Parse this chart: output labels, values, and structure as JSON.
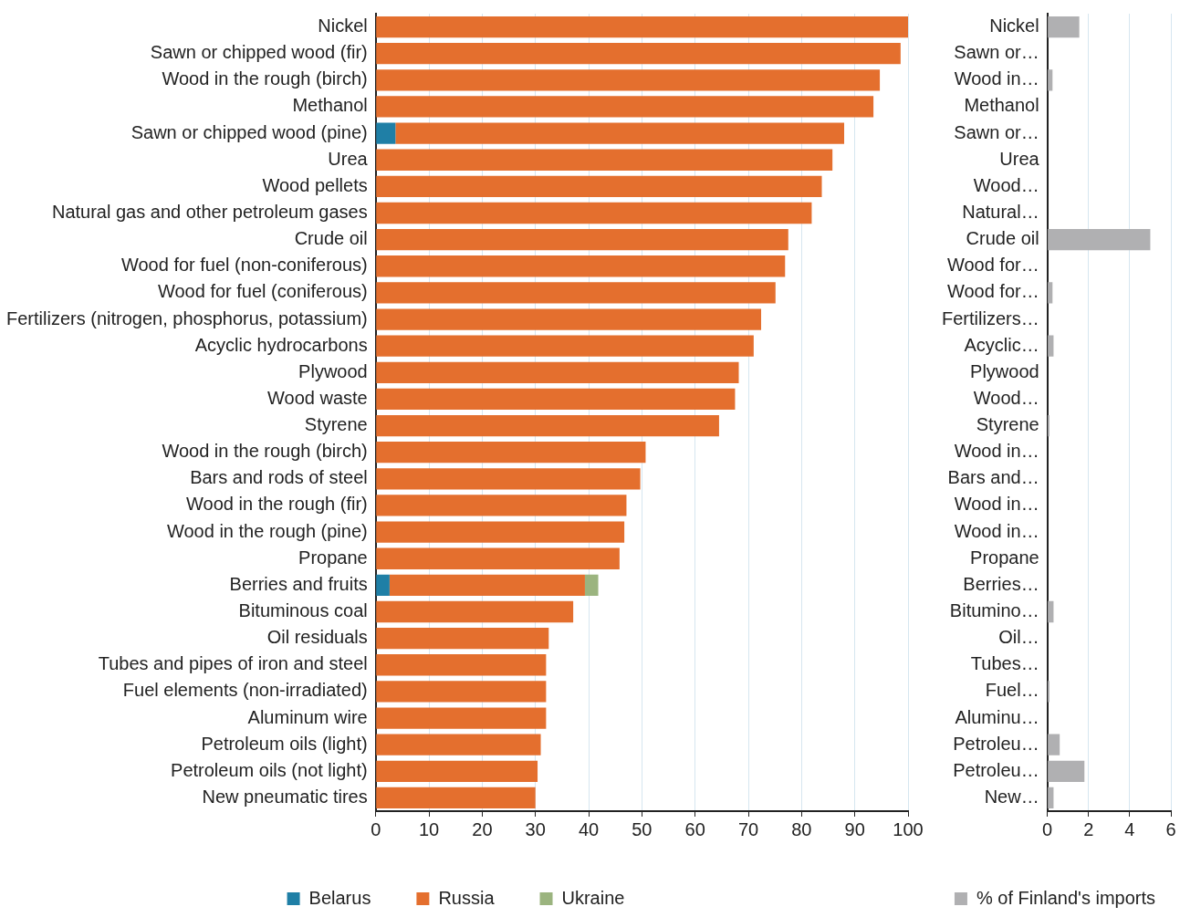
{
  "chart_data": [
    {
      "type": "bar",
      "orientation": "horizontal",
      "stacked": true,
      "categories": [
        "Nickel",
        "Sawn or chipped wood (fir)",
        "Wood in the rough (birch)",
        "Methanol",
        "Sawn or chipped wood (pine)",
        "Urea",
        "Wood pellets",
        "Natural gas and other petroleum gases",
        "Crude oil",
        "Wood for fuel (non-coniferous)",
        "Wood for fuel (coniferous)",
        "Fertilizers (nitrogen, phosphorus, potassium)",
        "Acyclic hydrocarbons",
        "Plywood",
        "Wood waste",
        "Styrene",
        "Wood in the rough (birch)",
        "Bars and rods of steel",
        "Wood in the rough (fir)",
        "Wood in the rough (pine)",
        "Propane",
        "Berries and fruits",
        "Bituminous coal",
        "Oil residuals",
        "Tubes and pipes of iron and steel",
        "Fuel elements (non-irradiated)",
        "Aluminum wire",
        "Petroleum oils (light)",
        "Petroleum oils (not light)",
        "New pneumatic tires"
      ],
      "series": [
        {
          "name": "Belarus",
          "color": "#1f7fa6",
          "values": [
            null,
            null,
            null,
            null,
            3.7,
            null,
            null,
            null,
            null,
            null,
            null,
            null,
            null,
            null,
            null,
            null,
            null,
            null,
            null,
            null,
            null,
            2.6,
            null,
            null,
            null,
            null,
            null,
            null,
            null,
            null
          ]
        },
        {
          "name": "Russia",
          "color": "#e46f2e",
          "values": [
            100,
            98.6,
            94.7,
            93.5,
            84.3,
            85.8,
            83.8,
            81.9,
            77.5,
            76.9,
            75.1,
            72.4,
            71,
            68.2,
            67.5,
            64.5,
            50.7,
            49.7,
            47.1,
            46.7,
            45.8,
            36.7,
            37.1,
            32.5,
            32,
            32,
            32,
            31,
            30.4,
            30
          ]
        },
        {
          "name": "Ukraine",
          "color": "#9bb47f",
          "values": [
            null,
            null,
            null,
            null,
            null,
            null,
            null,
            null,
            null,
            null,
            null,
            null,
            null,
            null,
            null,
            null,
            null,
            null,
            null,
            null,
            null,
            2.5,
            null,
            null,
            null,
            null,
            null,
            null,
            null,
            null
          ]
        }
      ],
      "xlim": [
        0,
        100
      ],
      "xticks": [
        0,
        10,
        20,
        30,
        40,
        50,
        60,
        70,
        80,
        90,
        100
      ],
      "grid": "x",
      "legend": "bottom"
    },
    {
      "type": "bar",
      "orientation": "horizontal",
      "categories": [
        "Nickel",
        "Sawn or…",
        "Wood in…",
        "Methanol",
        "Sawn or…",
        "Urea",
        "Wood…",
        "Natural…",
        "Crude oil",
        "Wood for…",
        "Wood for…",
        "Fertilizers…",
        "Acyclic…",
        "Plywood",
        "Wood…",
        "Styrene",
        "Wood in…",
        "Bars and…",
        "Wood in…",
        "Wood in…",
        "Propane",
        "Berries…",
        "Bitumino…",
        "Oil…",
        "Tubes…",
        "Fuel…",
        "Aluminu…",
        "Petroleu…",
        "Petroleu…",
        "New…"
      ],
      "series": [
        {
          "name": "% of Finland's imports",
          "color": "#b0b0b2",
          "values": [
            1.55,
            0,
            0.25,
            0,
            0,
            0,
            0,
            0,
            5.0,
            0,
            0.25,
            0,
            0.3,
            0,
            0,
            0.1,
            0,
            0,
            0,
            0,
            0,
            0,
            0.3,
            0,
            0,
            0.1,
            0,
            0.6,
            1.8,
            0.3
          ]
        }
      ],
      "xlim": [
        0,
        6
      ],
      "xticks": [
        0,
        2,
        4,
        6
      ],
      "grid": "x",
      "legend": "bottom"
    }
  ]
}
